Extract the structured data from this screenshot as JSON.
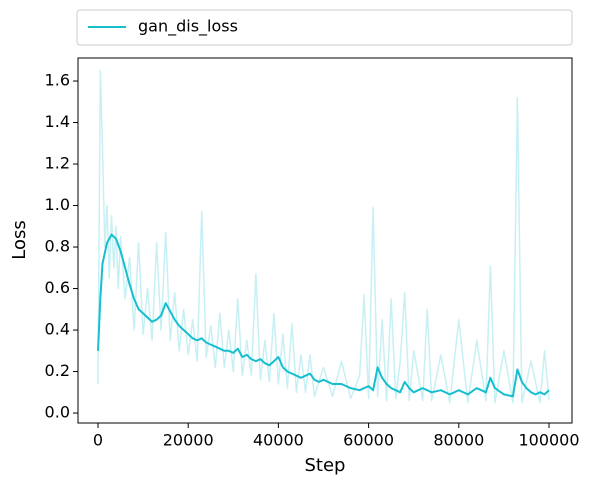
{
  "chart_data": {
    "type": "line",
    "xlabel": "Step",
    "ylabel": "Loss",
    "xlim": [
      -4435,
      105100
    ],
    "ylim": [
      -0.048,
      1.711
    ],
    "xticks": [
      0,
      20000,
      40000,
      60000,
      80000,
      100000
    ],
    "yticks": [
      {
        "value": 0,
        "label": "0.0"
      },
      {
        "value": 0.2,
        "label": "0.2"
      },
      {
        "value": 0.4,
        "label": "0.4"
      },
      {
        "value": 0.6,
        "label": "0.6"
      },
      {
        "value": 0.8,
        "label": "0.8"
      },
      {
        "value": 1.0,
        "label": "1.0"
      },
      {
        "value": 1.2,
        "label": "1.2"
      },
      {
        "value": 1.4,
        "label": "1.4"
      },
      {
        "value": 1.6,
        "label": "1.6"
      }
    ],
    "legend": "top",
    "series": [
      {
        "color": "#c7f0f4",
        "x": [
          0,
          500,
          1000,
          1500,
          2000,
          2500,
          3000,
          3500,
          4000,
          4500,
          5000,
          6000,
          7000,
          8000,
          9000,
          10000,
          11000,
          12000,
          13000,
          14000,
          15000,
          16000,
          17000,
          18000,
          19000,
          20000,
          21000,
          22000,
          23000,
          24000,
          25000,
          26000,
          27000,
          28000,
          29000,
          30000,
          31000,
          32000,
          33000,
          34000,
          35000,
          36000,
          37000,
          38000,
          39000,
          40000,
          41000,
          42000,
          43000,
          44000,
          45000,
          46000,
          47000,
          48000,
          50000,
          52000,
          54000,
          56000,
          58000,
          59000,
          60000,
          61000,
          62000,
          63000,
          64000,
          65000,
          66000,
          67000,
          68000,
          69000,
          70000,
          72000,
          73000,
          74000,
          76000,
          78000,
          80000,
          82000,
          84000,
          86000,
          87000,
          88000,
          90000,
          92000,
          93000,
          94000,
          96000,
          98000,
          99000,
          100000
        ],
        "values": [
          0.14,
          1.65,
          1.28,
          0.8,
          1.0,
          0.65,
          0.95,
          0.7,
          0.9,
          0.6,
          0.85,
          0.55,
          0.75,
          0.4,
          0.82,
          0.38,
          0.6,
          0.35,
          0.82,
          0.4,
          0.87,
          0.35,
          0.58,
          0.3,
          0.5,
          0.28,
          0.45,
          0.25,
          0.97,
          0.27,
          0.42,
          0.22,
          0.48,
          0.22,
          0.4,
          0.2,
          0.55,
          0.18,
          0.35,
          0.18,
          0.67,
          0.16,
          0.35,
          0.15,
          0.48,
          0.14,
          0.38,
          0.12,
          0.43,
          0.1,
          0.28,
          0.1,
          0.28,
          0.08,
          0.22,
          0.08,
          0.25,
          0.07,
          0.18,
          0.57,
          0.07,
          0.99,
          0.08,
          0.45,
          0.06,
          0.55,
          0.07,
          0.25,
          0.58,
          0.06,
          0.3,
          0.06,
          0.5,
          0.06,
          0.28,
          0.05,
          0.45,
          0.05,
          0.35,
          0.06,
          0.71,
          0.05,
          0.3,
          0.05,
          1.52,
          0.05,
          0.25,
          0.05,
          0.3,
          0.06
        ]
      },
      {
        "name": "gan_dis_loss",
        "color": "#17becf",
        "x": [
          0,
          500,
          1000,
          2000,
          3000,
          4000,
          5000,
          6000,
          7000,
          8000,
          9000,
          10000,
          11000,
          12000,
          13000,
          14000,
          15000,
          16000,
          17000,
          18000,
          19000,
          20000,
          21000,
          22000,
          23000,
          24000,
          25000,
          26000,
          27000,
          28000,
          29000,
          30000,
          31000,
          32000,
          33000,
          34000,
          35000,
          36000,
          37000,
          38000,
          39000,
          40000,
          41000,
          42000,
          43000,
          44000,
          45000,
          46000,
          47000,
          48000,
          49000,
          50000,
          52000,
          54000,
          56000,
          58000,
          60000,
          61000,
          62000,
          63000,
          64000,
          65000,
          66000,
          67000,
          68000,
          69000,
          70000,
          72000,
          74000,
          76000,
          78000,
          80000,
          82000,
          84000,
          86000,
          87000,
          88000,
          90000,
          92000,
          93000,
          94000,
          95000,
          96000,
          97000,
          98000,
          99000,
          100000
        ],
        "values": [
          0.3,
          0.55,
          0.72,
          0.82,
          0.86,
          0.84,
          0.78,
          0.7,
          0.62,
          0.55,
          0.5,
          0.48,
          0.46,
          0.44,
          0.45,
          0.47,
          0.53,
          0.49,
          0.45,
          0.42,
          0.4,
          0.38,
          0.36,
          0.35,
          0.36,
          0.34,
          0.33,
          0.32,
          0.31,
          0.3,
          0.3,
          0.29,
          0.31,
          0.27,
          0.28,
          0.26,
          0.25,
          0.26,
          0.24,
          0.23,
          0.25,
          0.27,
          0.22,
          0.2,
          0.19,
          0.18,
          0.17,
          0.18,
          0.19,
          0.16,
          0.15,
          0.16,
          0.14,
          0.14,
          0.12,
          0.11,
          0.13,
          0.11,
          0.22,
          0.17,
          0.14,
          0.12,
          0.11,
          0.1,
          0.15,
          0.12,
          0.1,
          0.12,
          0.1,
          0.11,
          0.09,
          0.11,
          0.09,
          0.12,
          0.1,
          0.17,
          0.12,
          0.09,
          0.08,
          0.21,
          0.15,
          0.12,
          0.1,
          0.09,
          0.1,
          0.09,
          0.11
        ]
      }
    ]
  }
}
